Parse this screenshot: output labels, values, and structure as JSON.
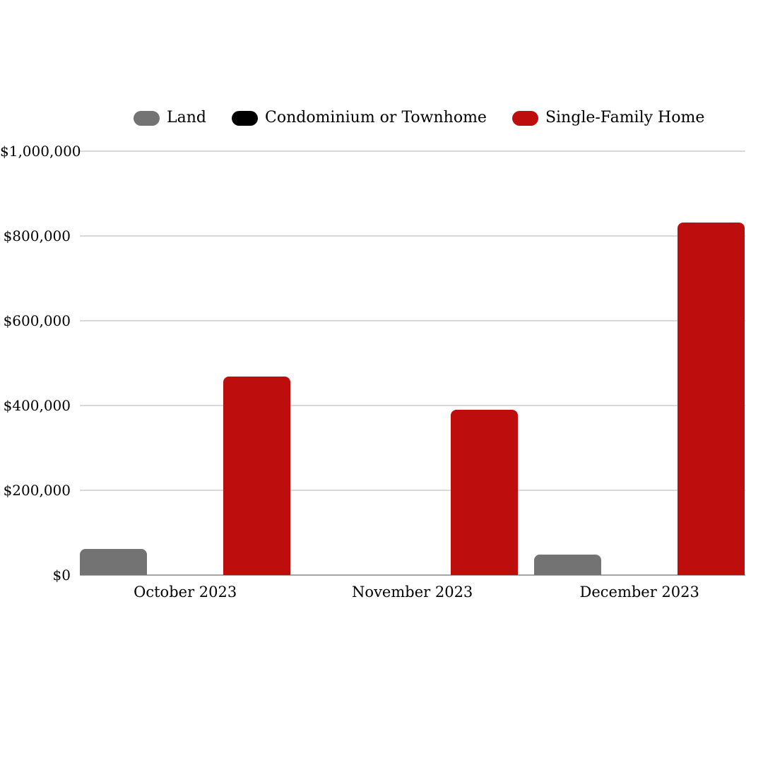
{
  "chart_data": {
    "type": "bar",
    "title": "",
    "categories": [
      "October 2023",
      "November 2023",
      "December 2023"
    ],
    "series": [
      {
        "name": "Land",
        "color": "#737373",
        "values": [
          62000,
          0,
          48000
        ]
      },
      {
        "name": "Condominium or Townhome",
        "color": "#000000",
        "values": [
          0,
          0,
          0
        ]
      },
      {
        "name": "Single-Family Home",
        "color": "#bd0d0d",
        "values": [
          468000,
          390000,
          832000
        ]
      }
    ],
    "y_axis": {
      "min": 0,
      "max": 1000000,
      "tick_step": 200000,
      "tick_labels": [
        "$0",
        "$200,000",
        "$400,000",
        "$600,000",
        "$800,000",
        "$1,000,000"
      ]
    },
    "xlabel": "",
    "ylabel": "",
    "legend_position": "top",
    "grid": true,
    "colors": {
      "gridline": "#d9d9d9",
      "axis_line": "#a6a6a6",
      "text": "#000000",
      "background": "#ffffff"
    }
  }
}
